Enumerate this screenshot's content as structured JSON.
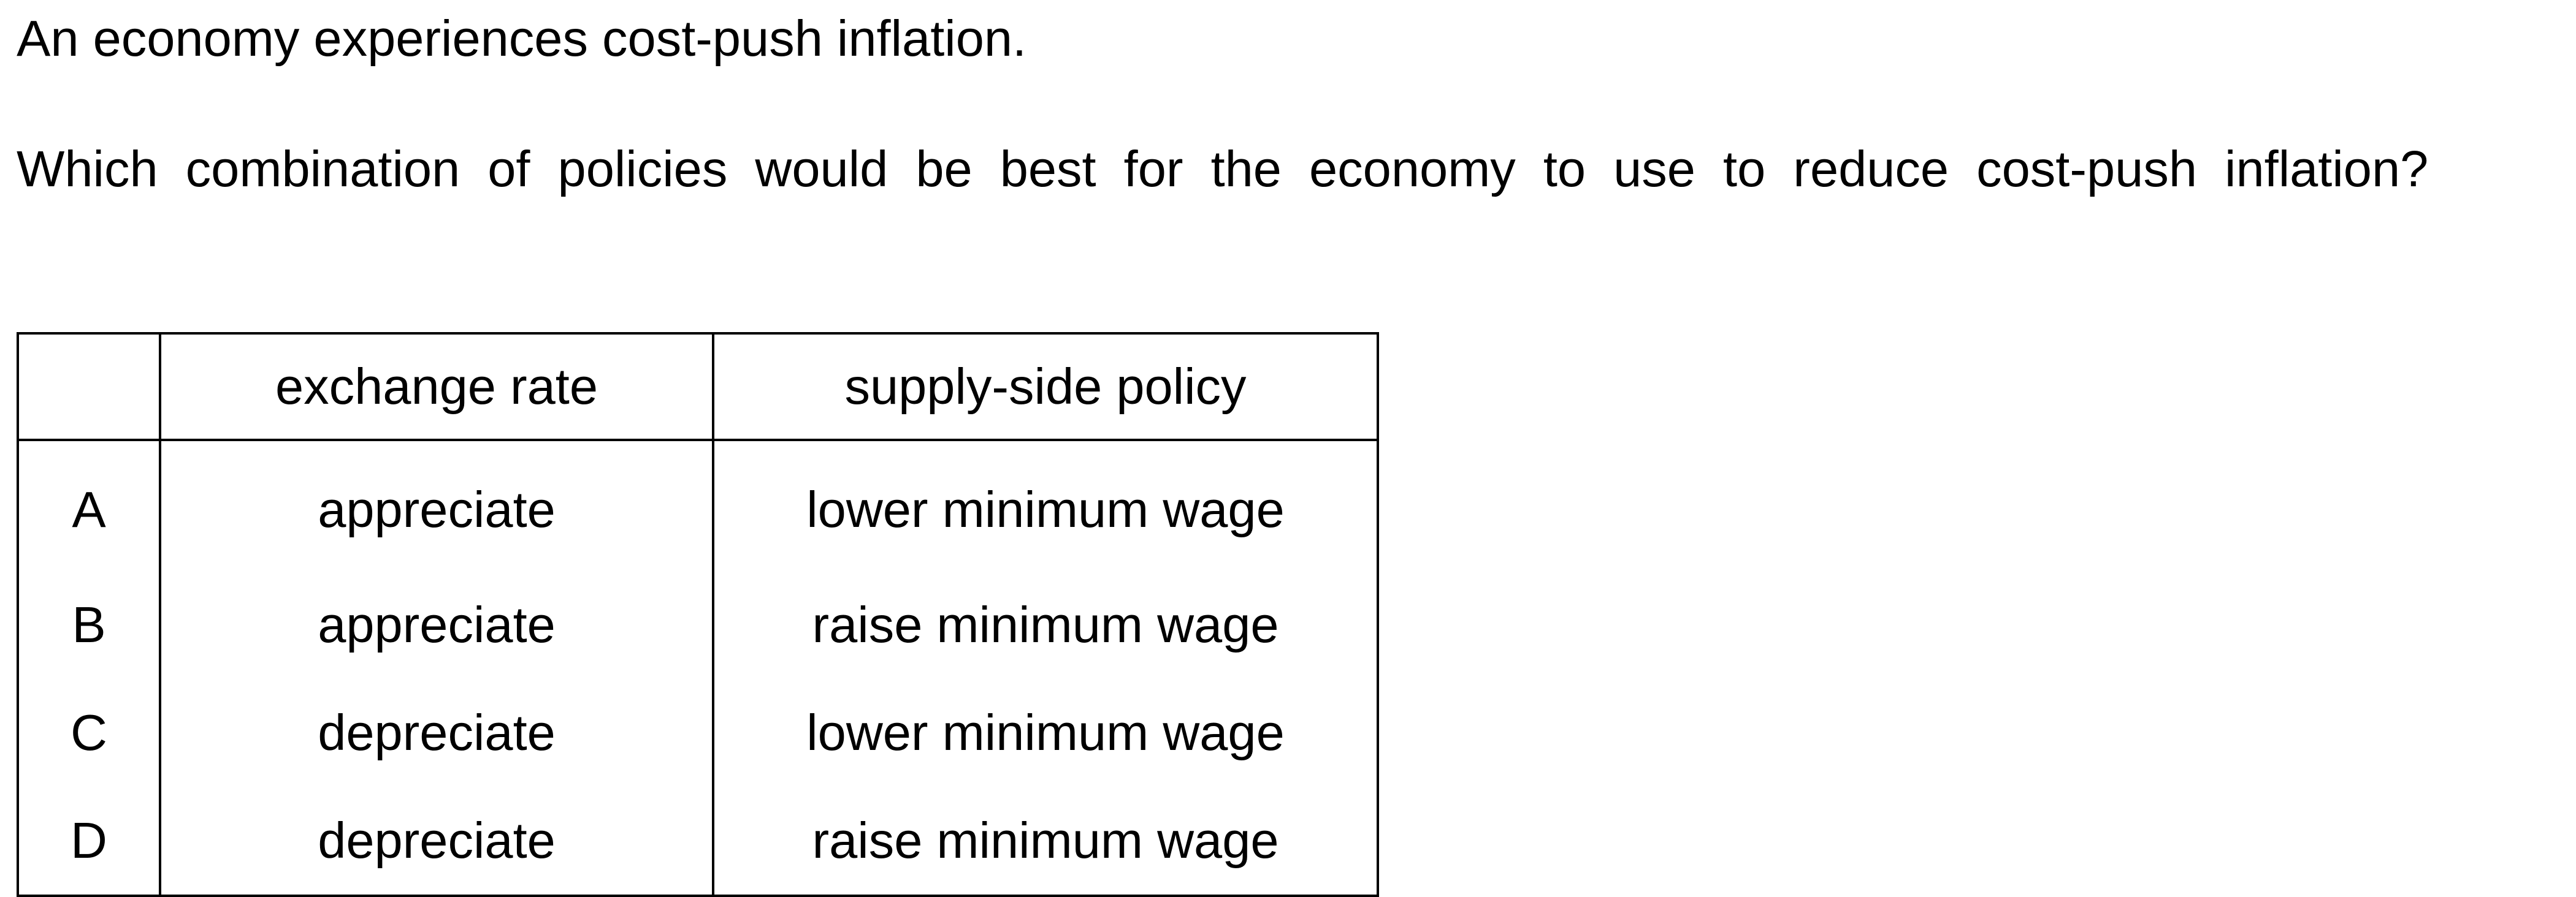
{
  "statement": "An economy experiences cost-push inflation.",
  "question": "Which combination of policies would be best for the economy to use to reduce cost-push inflation?",
  "table": {
    "headers": [
      "",
      "exchange rate",
      "supply-side policy"
    ],
    "rows": [
      {
        "letter": "A",
        "exchange_rate": "appreciate",
        "supply_side_policy": "lower minimum wage"
      },
      {
        "letter": "B",
        "exchange_rate": "appreciate",
        "supply_side_policy": "raise minimum wage"
      },
      {
        "letter": "C",
        "exchange_rate": "depreciate",
        "supply_side_policy": "lower minimum wage"
      },
      {
        "letter": "D",
        "exchange_rate": "depreciate",
        "supply_side_policy": "raise minimum wage"
      }
    ]
  }
}
